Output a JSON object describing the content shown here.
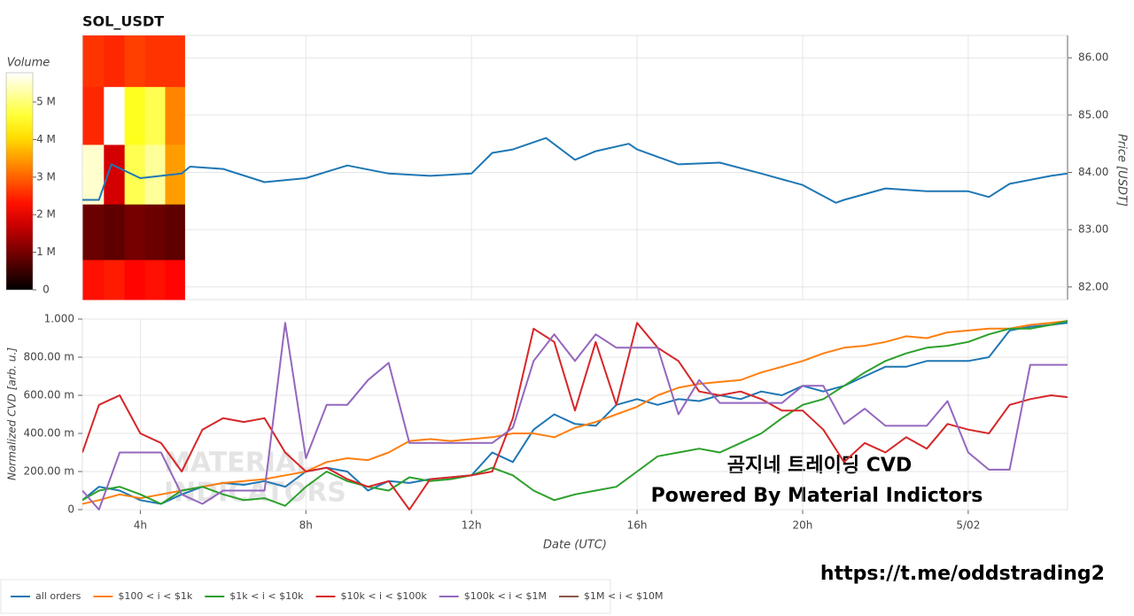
{
  "chart_data": [
    {
      "type": "line",
      "title": "SOL_USDT",
      "y_label": "Price [USDT]",
      "xlim": [
        2.6,
        26.4
      ],
      "xticks": [
        4,
        8,
        12,
        16,
        20,
        24
      ],
      "ylim": [
        81.78,
        86.39
      ],
      "yticks": [
        {
          "value": 82,
          "label": "82.00"
        },
        {
          "value": 83,
          "label": "83.00"
        },
        {
          "value": 84,
          "label": "84.00"
        },
        {
          "value": 85,
          "label": "85.00"
        },
        {
          "value": 86,
          "label": "86.00"
        }
      ],
      "grid": true,
      "x": [
        2.6,
        3,
        3.3,
        4,
        5,
        5.2,
        6,
        7,
        8,
        9,
        10,
        11,
        12,
        12.5,
        13,
        13.8,
        14.5,
        15,
        15.8,
        16,
        17,
        18,
        19,
        20,
        20.8,
        21,
        22,
        23,
        24,
        24.5,
        25,
        26,
        26.4
      ],
      "series": [
        {
          "color": "#1f77b4",
          "values": [
            83.52,
            83.52,
            84.14,
            83.9,
            83.98,
            84.1,
            84.06,
            83.83,
            83.9,
            84.12,
            83.98,
            83.94,
            83.98,
            84.34,
            84.4,
            84.6,
            84.22,
            84.37,
            84.5,
            84.4,
            84.14,
            84.17,
            83.98,
            83.78,
            83.47,
            83.52,
            83.72,
            83.67,
            83.67,
            83.57,
            83.8,
            83.94,
            83.98
          ]
        }
      ],
      "heatmap": {
        "colorbar_label": "Volume",
        "clim": [
          0,
          5780000
        ],
        "cticks": [
          0,
          {
            "value": 1000000,
            "label": "1 M"
          },
          {
            "value": 2000000,
            "label": "2 M"
          },
          {
            "value": 3000000,
            "label": "3 M"
          },
          {
            "value": 4000000,
            "label": "4 M"
          },
          {
            "value": 5000000,
            "label": "5 M"
          }
        ],
        "x_edges": [
          2.61,
          3.12,
          3.62,
          4.11,
          4.6,
          5.07
        ],
        "y_edges": [
          86.39,
          85.49,
          84.48,
          83.44,
          82.47,
          81.78
        ],
        "z": [
          [
            2600000,
            2500000,
            2700000,
            2600000,
            2600000
          ],
          [
            2500000,
            5800000,
            4500000,
            4800000,
            3300000
          ],
          [
            5500000,
            1800000,
            4800000,
            5200000,
            3500000
          ],
          [
            900000,
            800000,
            1000000,
            900000,
            800000
          ],
          [
            2300000,
            2400000,
            2200000,
            2300000,
            2200000
          ]
        ]
      }
    },
    {
      "type": "line",
      "x_label": "Date (UTC)",
      "y_label": "Normalized CVD [arb. u.]",
      "xlim": [
        2.6,
        26.4
      ],
      "xticks": [
        {
          "value": 4,
          "label": "4h"
        },
        {
          "value": 8,
          "label": "8h"
        },
        {
          "value": 12,
          "label": "12h"
        },
        {
          "value": 16,
          "label": "16h"
        },
        {
          "value": 20,
          "label": "20h"
        },
        {
          "value": 24,
          "label": "5/02"
        }
      ],
      "ylim": [
        0,
        1
      ],
      "yticks": [
        0,
        {
          "value": 0.2,
          "label": "200.00 m"
        },
        {
          "value": 0.4,
          "label": "400.00 m"
        },
        {
          "value": 0.6,
          "label": "600.00 m"
        },
        {
          "value": 0.8,
          "label": "800.00 m"
        },
        {
          "value": 1,
          "label": "1.000"
        }
      ],
      "grid": true,
      "legend": "bottom",
      "x": [
        2.6,
        3,
        3.5,
        4,
        4.5,
        5,
        5.5,
        6,
        6.5,
        7,
        7.5,
        8,
        8.5,
        9,
        9.5,
        10,
        10.5,
        11,
        11.5,
        12,
        12.5,
        13,
        13.5,
        14,
        14.5,
        15,
        15.5,
        16,
        16.5,
        17,
        17.5,
        18,
        18.5,
        19,
        19.5,
        20,
        20.5,
        21,
        21.5,
        22,
        22.5,
        23,
        23.5,
        24,
        24.5,
        25,
        25.5,
        26,
        26.4
      ],
      "series": [
        {
          "name": "all orders",
          "color": "#1f77b4",
          "values": [
            0.05,
            0.12,
            0.1,
            0.05,
            0.03,
            0.08,
            0.12,
            0.14,
            0.13,
            0.15,
            0.12,
            0.2,
            0.22,
            0.2,
            0.1,
            0.15,
            0.14,
            0.16,
            0.17,
            0.18,
            0.3,
            0.25,
            0.42,
            0.5,
            0.45,
            0.44,
            0.55,
            0.58,
            0.55,
            0.58,
            0.57,
            0.6,
            0.58,
            0.62,
            0.6,
            0.65,
            0.62,
            0.65,
            0.7,
            0.75,
            0.75,
            0.78,
            0.78,
            0.78,
            0.8,
            0.94,
            0.96,
            0.97,
            0.98
          ]
        },
        {
          "name": "$100 < i < $1k",
          "color": "#ff7f0e",
          "values": [
            0.03,
            0.05,
            0.08,
            0.06,
            0.08,
            0.1,
            0.12,
            0.14,
            0.15,
            0.16,
            0.18,
            0.2,
            0.25,
            0.27,
            0.26,
            0.3,
            0.36,
            0.37,
            0.36,
            0.37,
            0.38,
            0.4,
            0.4,
            0.38,
            0.43,
            0.46,
            0.5,
            0.54,
            0.6,
            0.64,
            0.66,
            0.67,
            0.68,
            0.72,
            0.75,
            0.78,
            0.82,
            0.85,
            0.86,
            0.88,
            0.91,
            0.9,
            0.93,
            0.94,
            0.95,
            0.95,
            0.97,
            0.98,
            0.99
          ]
        },
        {
          "name": "$1k < i < $10k",
          "color": "#2ca02c",
          "values": [
            0.05,
            0.1,
            0.12,
            0.08,
            0.03,
            0.1,
            0.12,
            0.08,
            0.05,
            0.06,
            0.02,
            0.12,
            0.2,
            0.15,
            0.12,
            0.1,
            0.17,
            0.15,
            0.16,
            0.18,
            0.22,
            0.18,
            0.1,
            0.05,
            0.08,
            0.1,
            0.12,
            0.2,
            0.28,
            0.3,
            0.32,
            0.3,
            0.35,
            0.4,
            0.48,
            0.55,
            0.58,
            0.65,
            0.72,
            0.78,
            0.82,
            0.85,
            0.86,
            0.88,
            0.92,
            0.95,
            0.95,
            0.97,
            0.99
          ]
        },
        {
          "name": "$10k < i < $100k",
          "color": "#d62728",
          "values": [
            0.3,
            0.55,
            0.6,
            0.4,
            0.35,
            0.2,
            0.42,
            0.48,
            0.46,
            0.48,
            0.3,
            0.2,
            0.22,
            0.16,
            0.12,
            0.15,
            0.0,
            0.16,
            0.17,
            0.18,
            0.2,
            0.48,
            0.95,
            0.88,
            0.52,
            0.88,
            0.55,
            0.98,
            0.85,
            0.78,
            0.62,
            0.6,
            0.62,
            0.58,
            0.52,
            0.52,
            0.42,
            0.25,
            0.35,
            0.3,
            0.38,
            0.32,
            0.45,
            0.42,
            0.4,
            0.55,
            0.58,
            0.6,
            0.59
          ]
        },
        {
          "name": "$100k < i < $1M",
          "color": "#9467bd",
          "values": [
            0.1,
            0.0,
            0.3,
            0.3,
            0.3,
            0.08,
            0.03,
            0.1,
            0.1,
            0.1,
            0.98,
            0.27,
            0.55,
            0.55,
            0.68,
            0.77,
            0.35,
            0.35,
            0.35,
            0.35,
            0.35,
            0.43,
            0.78,
            0.92,
            0.78,
            0.92,
            0.85,
            0.85,
            0.85,
            0.5,
            0.68,
            0.56,
            0.56,
            0.56,
            0.56,
            0.65,
            0.65,
            0.45,
            0.53,
            0.44,
            0.44,
            0.44,
            0.57,
            0.3,
            0.21,
            0.21,
            0.76,
            0.76,
            0.76
          ]
        },
        {
          "name": "$1M < i < $10M",
          "color": "#8c564b",
          "values": [
            null,
            null,
            null,
            null,
            null,
            null,
            null,
            null,
            null,
            null,
            null,
            null,
            null,
            null,
            null,
            null,
            null,
            null,
            null,
            null,
            null,
            null,
            null,
            null,
            null,
            null,
            null,
            null,
            null,
            null,
            null,
            null,
            null,
            null,
            null,
            null,
            null,
            null,
            null,
            null,
            null,
            null,
            null,
            null,
            null,
            null,
            null,
            null,
            null
          ]
        }
      ],
      "watermark": [
        "MATERIAL",
        "INDICATORS"
      ],
      "annotations": [
        "곰지네 트레이딩 CVD",
        "Powered By Material Indictors"
      ]
    }
  ],
  "footer": {
    "link": "https://t.me/oddstrading2"
  }
}
